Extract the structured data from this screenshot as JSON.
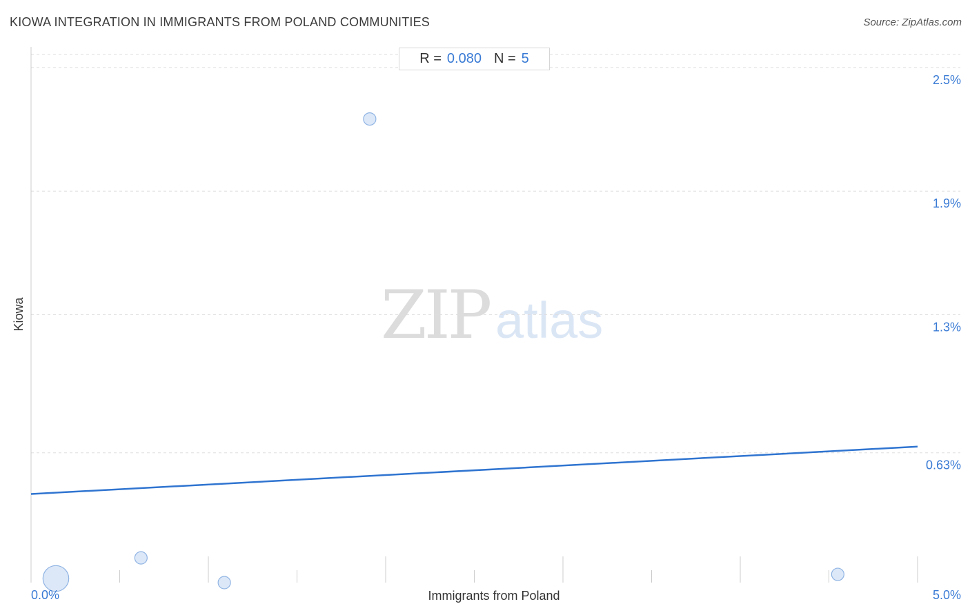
{
  "header": {
    "title": "KIOWA INTEGRATION IN IMMIGRANTS FROM POLAND COMMUNITIES",
    "source": "Source: ZipAtlas.com"
  },
  "stats": {
    "r_label": "R =",
    "r_value": "0.080",
    "n_label": "N =",
    "n_value": "5"
  },
  "watermark": {
    "zip": "ZIP",
    "atlas": "atlas"
  },
  "colors": {
    "accent": "#3a7bd5",
    "trend": "#2f74d0",
    "point_fill": "#dce8f8",
    "point_stroke": "#8fb3e3",
    "grid": "#dddddd"
  },
  "chart_data": {
    "type": "scatter",
    "title": "KIOWA INTEGRATION IN IMMIGRANTS FROM POLAND COMMUNITIES",
    "xlabel": "Immigrants from Poland",
    "ylabel": "Kiowa",
    "xlim": [
      0,
      5.0
    ],
    "ylim": [
      0,
      2.6
    ],
    "x_tick_labels": [
      {
        "value": 0.0,
        "label": "0.0%"
      },
      {
        "value": 5.0,
        "label": "5.0%"
      }
    ],
    "y_tick_labels": [
      {
        "value": 2.5,
        "label": "2.5%"
      },
      {
        "value": 1.9,
        "label": "1.9%"
      },
      {
        "value": 1.3,
        "label": "1.3%"
      },
      {
        "value": 0.63,
        "label": "0.63%"
      }
    ],
    "grid": true,
    "points": [
      {
        "x": 0.14,
        "y": 0.02,
        "size": 3
      },
      {
        "x": 0.62,
        "y": 0.12,
        "size": 1
      },
      {
        "x": 1.09,
        "y": 0.0,
        "size": 1
      },
      {
        "x": 1.91,
        "y": 2.25,
        "size": 1
      },
      {
        "x": 4.55,
        "y": 0.04,
        "size": 1
      }
    ],
    "trendline": {
      "x": [
        0,
        5.0
      ],
      "y": [
        0.43,
        0.66
      ]
    }
  }
}
